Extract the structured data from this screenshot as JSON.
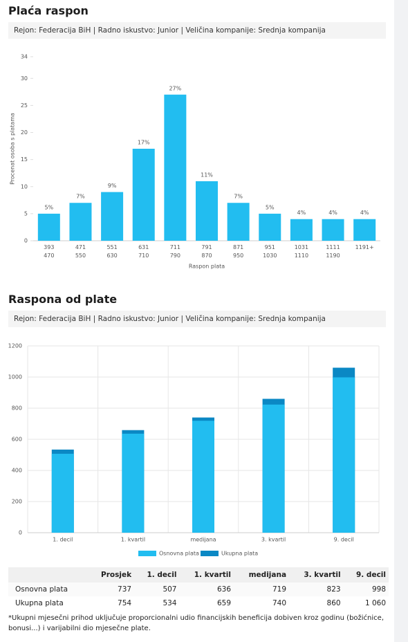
{
  "chart_data": [
    {
      "type": "bar",
      "title": "Plaća raspon",
      "subtitle": "Rejon: Federacija BiH | Radno iskustvo: Junior | Veličina kompanije: Srednja kompanija",
      "y_label": "Procenat osoba s platama",
      "x_label": "Raspon plata",
      "categories": [
        "393\n470",
        "471\n550",
        "551\n630",
        "631\n710",
        "711\n790",
        "791\n870",
        "871\n950",
        "951\n1030",
        "1031\n1110",
        "1111\n1190",
        "1191+"
      ],
      "values": [
        5,
        7,
        9,
        17,
        27,
        11,
        7,
        5,
        4,
        4,
        4
      ],
      "value_labels": [
        "5%",
        "7%",
        "9%",
        "17%",
        "27%",
        "11%",
        "7%",
        "5%",
        "4%",
        "4%",
        "4%"
      ],
      "color": "#22bdf0",
      "ylim": [
        0,
        34
      ],
      "yticks": [
        0,
        5,
        10,
        15,
        20,
        25,
        30,
        34
      ],
      "grid": false
    },
    {
      "type": "overlap-bar",
      "title": "Raspona od plate",
      "subtitle": "Rejon: Federacija BiH | Radno iskustvo: Junior | Veličina kompanije: Srednja kompanija",
      "categories": [
        "1. decil",
        "1. kvartil",
        "medijana",
        "3. kvartil",
        "9. decil"
      ],
      "series": [
        {
          "name": "Osnovna plata",
          "color": "#22bdf0",
          "values": [
            507,
            636,
            719,
            823,
            998
          ]
        },
        {
          "name": "Ukupna plata",
          "color": "#0b88c4",
          "values": [
            534,
            659,
            740,
            860,
            1060
          ]
        }
      ],
      "ylim": [
        0,
        1200
      ],
      "yticks": [
        0,
        200,
        400,
        600,
        800,
        1000,
        1200
      ],
      "grid": true
    }
  ],
  "table": {
    "columns": [
      "Prosjek",
      "1. decil",
      "1. kvartil",
      "medijana",
      "3. kvartil",
      "9. decil"
    ],
    "rows": [
      {
        "label": "Osnovna plata",
        "cells": [
          "737",
          "507",
          "636",
          "719",
          "823",
          "998"
        ]
      },
      {
        "label": "Ukupna plata",
        "cells": [
          "754",
          "534",
          "659",
          "740",
          "860",
          "1 060"
        ]
      }
    ]
  },
  "footnote": "*Ukupni mjesečni prihod uključuje proporcionalni udio financijskih beneficija dobiven kroz godinu (božićnice, bonusi...) i varijabilni dio mjesečne plate."
}
